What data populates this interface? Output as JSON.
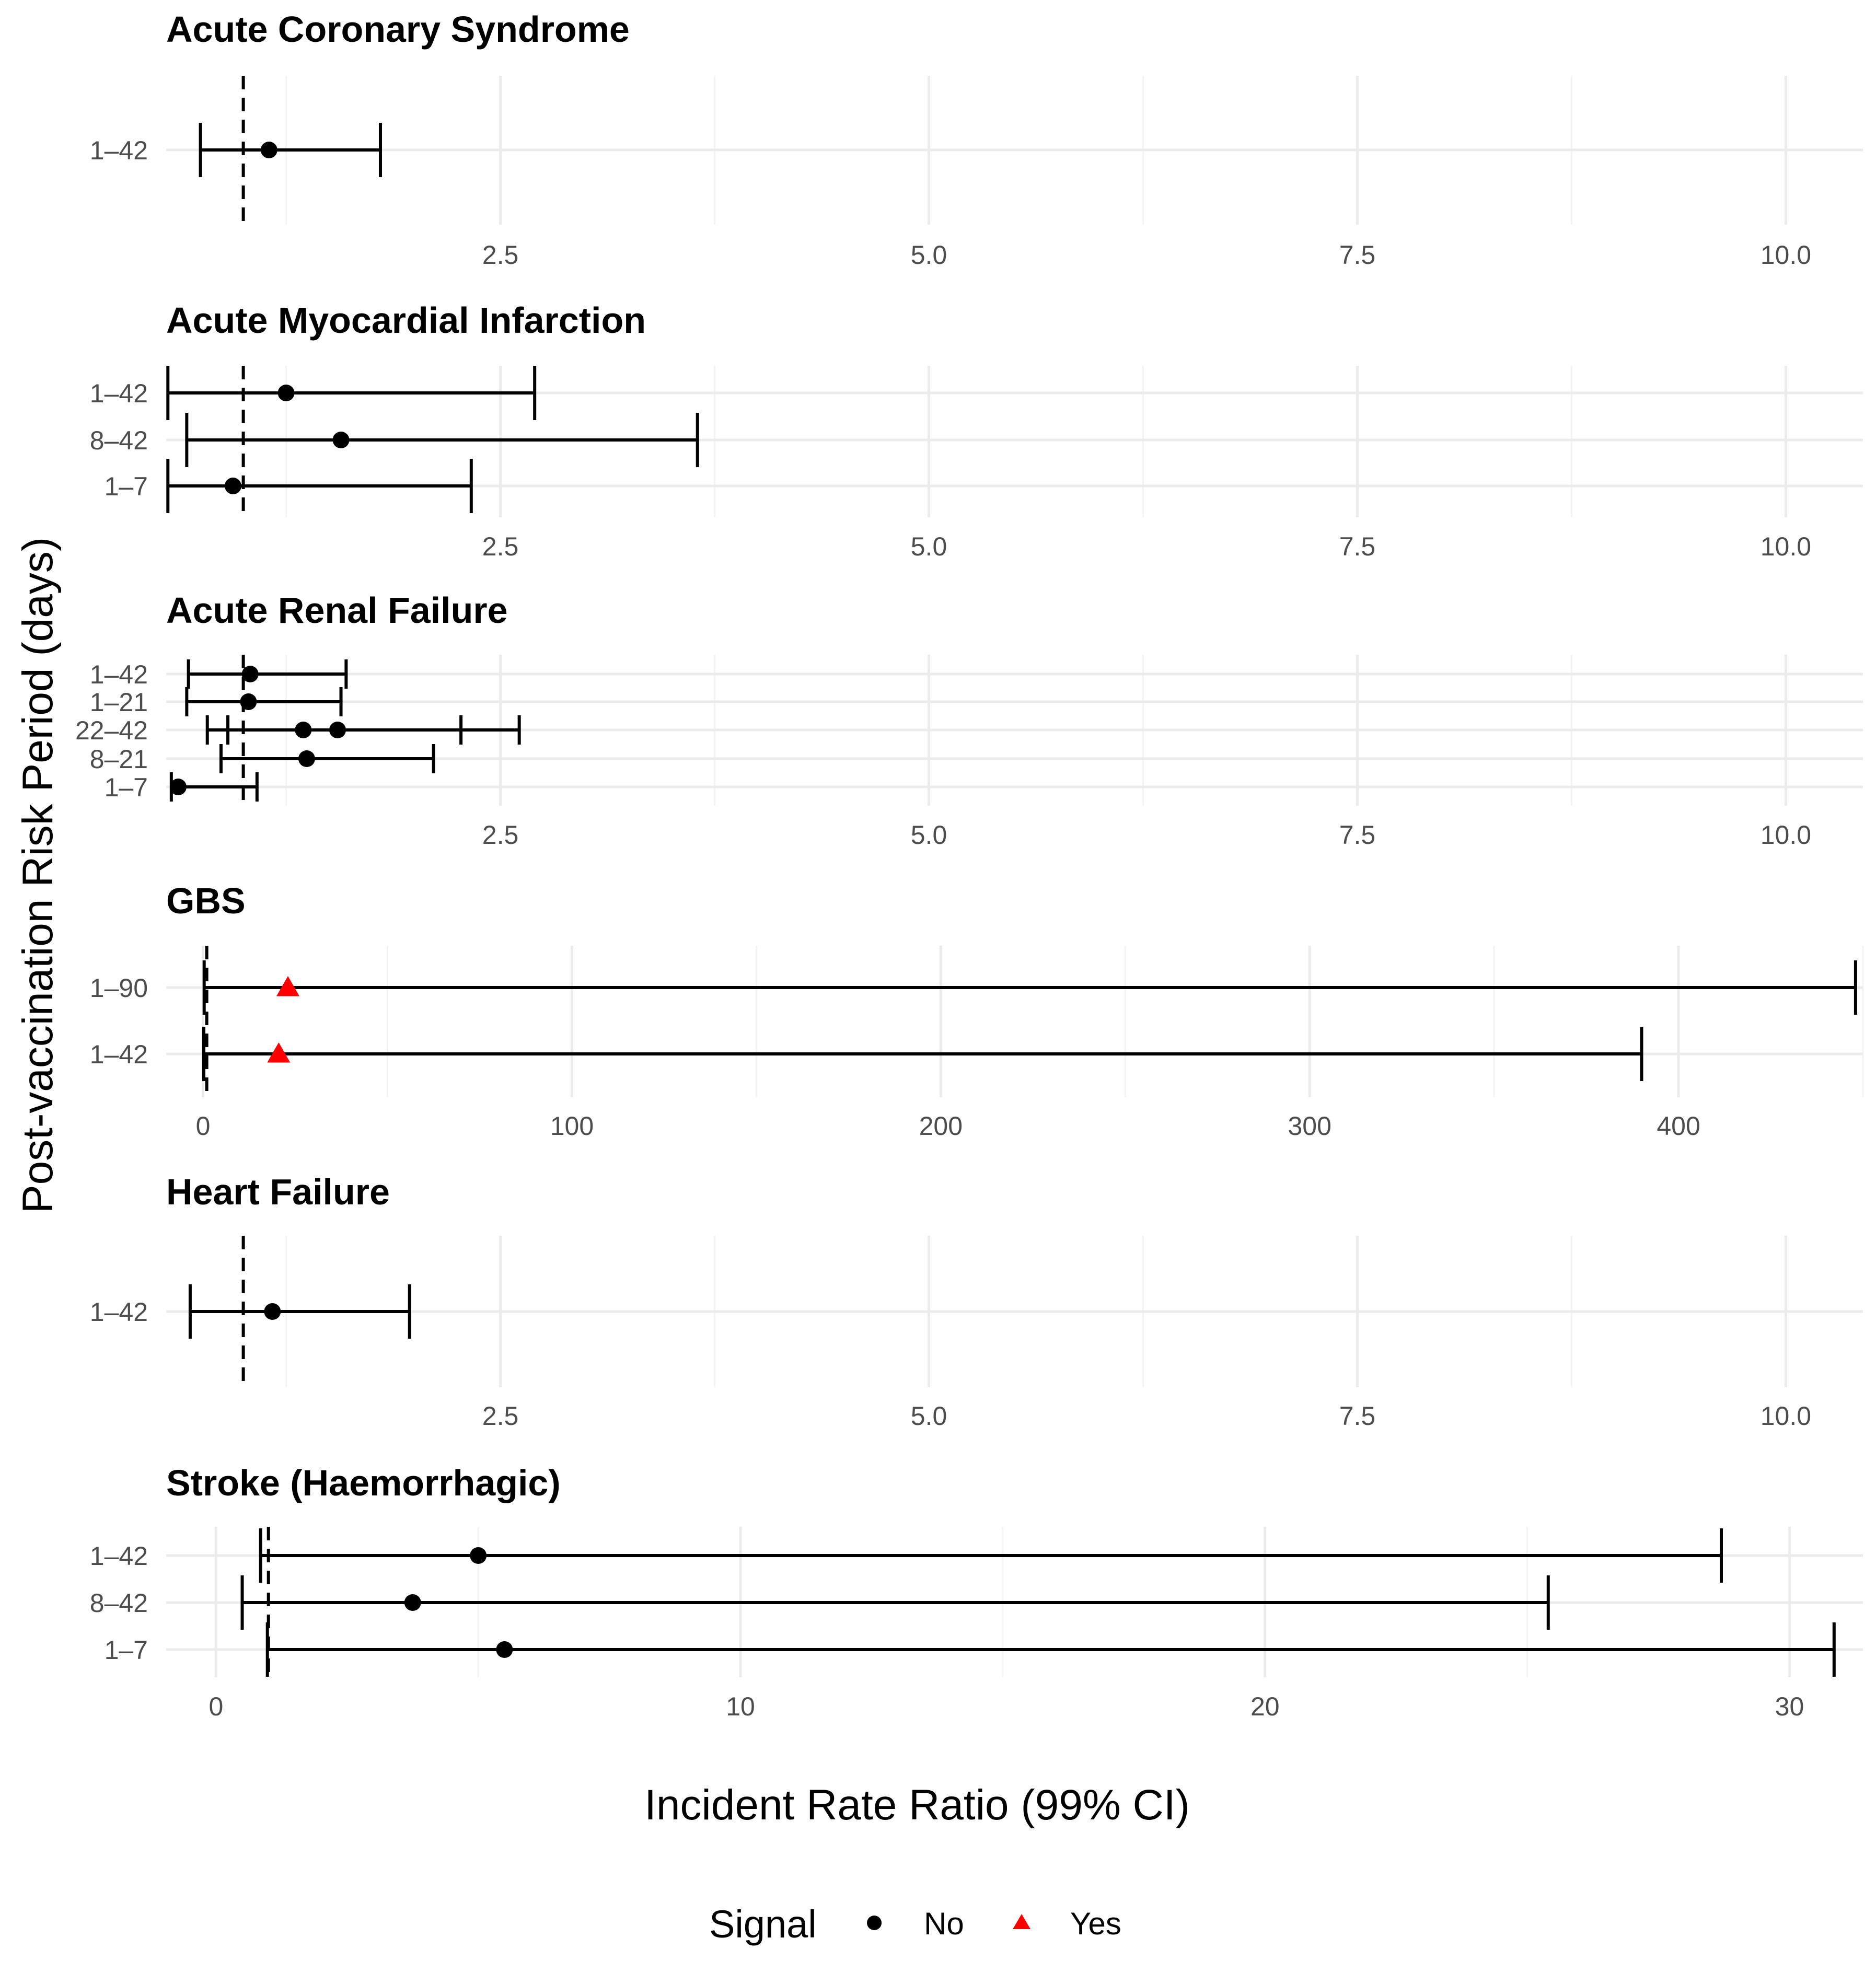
{
  "chart_data": {
    "type": "forest",
    "x_axis_title": "Incident Rate Ratio (99% CI)",
    "y_axis_title": "Post-vaccination Risk Period (days)",
    "reference_line": 1,
    "legend": {
      "title": "Signal",
      "entries": [
        {
          "label": "No",
          "shape": "circle",
          "color": "#000000"
        },
        {
          "label": "Yes",
          "shape": "triangle",
          "color": "#ff0000"
        }
      ]
    },
    "panels": [
      {
        "title": "Acute Coronary Syndrome",
        "xlim": [
          0.55,
          10.45
        ],
        "xticks": [
          2.5,
          5.0,
          7.5,
          10.0
        ],
        "xtick_labels": [
          "2.5",
          "5.0",
          "7.5",
          "10.0"
        ],
        "rows": [
          {
            "period": "1–42",
            "estimate": 1.15,
            "lower": 0.75,
            "upper": 1.8,
            "signal": "No"
          }
        ]
      },
      {
        "title": "Acute Myocardial Infarction",
        "xlim": [
          0.55,
          10.45
        ],
        "xticks": [
          2.5,
          5.0,
          7.5,
          10.0
        ],
        "xtick_labels": [
          "2.5",
          "5.0",
          "7.5",
          "10.0"
        ],
        "rows": [
          {
            "period": "1–42",
            "estimate": 1.25,
            "lower": 0.56,
            "upper": 2.7,
            "signal": "No"
          },
          {
            "period": "8–42",
            "estimate": 1.57,
            "lower": 0.67,
            "upper": 3.65,
            "signal": "No"
          },
          {
            "period": "1–7",
            "estimate": 0.94,
            "lower": 0.56,
            "upper": 2.33,
            "signal": "No"
          }
        ]
      },
      {
        "title": "Acute Renal Failure",
        "xlim": [
          0.55,
          10.45
        ],
        "xticks": [
          2.5,
          5.0,
          7.5,
          10.0
        ],
        "xtick_labels": [
          "2.5",
          "5.0",
          "7.5",
          "10.0"
        ],
        "rows": [
          {
            "period": "1–42",
            "estimate": 1.04,
            "lower": 0.68,
            "upper": 1.6,
            "signal": "No"
          },
          {
            "period": "1–21",
            "estimate": 1.03,
            "lower": 0.67,
            "upper": 1.57,
            "signal": "No"
          },
          {
            "period": "22–42",
            "estimate": 1.35,
            "lower": 0.79,
            "upper": 2.27,
            "signal": "No",
            "secondary": {
              "estimate": 1.55,
              "lower": 0.91,
              "upper": 2.61
            }
          },
          {
            "period": "8–21",
            "estimate": 1.37,
            "lower": 0.87,
            "upper": 2.11,
            "signal": "No"
          },
          {
            "period": "1–7",
            "estimate": 0.62,
            "lower": 0.58,
            "upper": 1.08,
            "signal": "No"
          }
        ]
      },
      {
        "title": "GBS",
        "xlim": [
          -10,
          450
        ],
        "xticks": [
          0,
          100,
          200,
          300,
          400
        ],
        "xtick_labels": [
          "0",
          "100",
          "200",
          "300",
          "400"
        ],
        "rows": [
          {
            "period": "1–90",
            "estimate": 23,
            "lower": 0.3,
            "upper": 448,
            "signal": "Yes"
          },
          {
            "period": "1–42",
            "estimate": 20.5,
            "lower": 0.2,
            "upper": 390,
            "signal": "Yes"
          }
        ]
      },
      {
        "title": "Heart Failure",
        "xlim": [
          0.55,
          10.45
        ],
        "xticks": [
          2.5,
          5.0,
          7.5,
          10.0
        ],
        "xtick_labels": [
          "2.5",
          "5.0",
          "7.5",
          "10.0"
        ],
        "rows": [
          {
            "period": "1–42",
            "estimate": 1.17,
            "lower": 0.69,
            "upper": 1.97,
            "signal": "No"
          }
        ]
      },
      {
        "title": "Stroke (Haemorrhagic)",
        "xlim": [
          -0.95,
          31.4
        ],
        "xticks": [
          0,
          10,
          20,
          30
        ],
        "xtick_labels": [
          "0",
          "10",
          "20",
          "30"
        ],
        "rows": [
          {
            "period": "1–42",
            "estimate": 5.0,
            "lower": 0.85,
            "upper": 28.7,
            "signal": "No"
          },
          {
            "period": "8–42",
            "estimate": 3.75,
            "lower": 0.5,
            "upper": 25.4,
            "signal": "No"
          },
          {
            "period": "1–7",
            "estimate": 5.5,
            "lower": 0.98,
            "upper": 30.85,
            "signal": "No"
          }
        ]
      }
    ]
  }
}
